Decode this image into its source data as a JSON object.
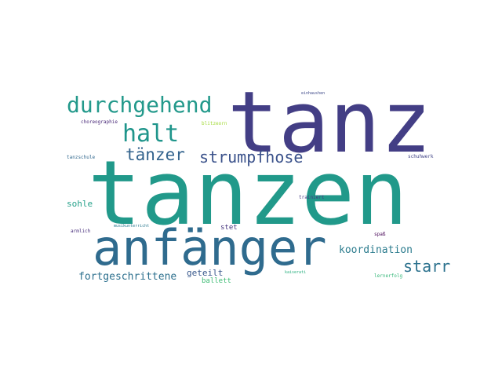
{
  "words": [
    {
      "id": "tanzen",
      "text": "tanzen",
      "color": "#21998a"
    },
    {
      "id": "tanz",
      "text": "tanz",
      "color": "#433e85"
    },
    {
      "id": "anfaenger",
      "text": "anfänger",
      "color": "#2f6b8e"
    },
    {
      "id": "durchgehend",
      "text": "durchgehend",
      "color": "#23998b"
    },
    {
      "id": "halt",
      "text": "halt",
      "color": "#1f958b"
    },
    {
      "id": "taenzer",
      "text": "tänzer",
      "color": "#33638d"
    },
    {
      "id": "strumpfhose",
      "text": "strumpfhose",
      "color": "#3b528b"
    },
    {
      "id": "starr",
      "text": "starr",
      "color": "#2c728e"
    },
    {
      "id": "koordination",
      "text": "koordination",
      "color": "#2c7c8e"
    },
    {
      "id": "fortgeschrittene",
      "text": "fortgeschrittene",
      "color": "#2d708e"
    },
    {
      "id": "sohle",
      "text": "sohle",
      "color": "#25a18a"
    },
    {
      "id": "geteilt",
      "text": "geteilt",
      "color": "#38588c"
    },
    {
      "id": "ballett",
      "text": "ballett",
      "color": "#3dbc74"
    },
    {
      "id": "stet",
      "text": "stet",
      "color": "#46337e"
    },
    {
      "id": "choreographie",
      "text": "choreographie",
      "color": "#482878"
    },
    {
      "id": "blitzeorn",
      "text": "blitzeorn",
      "color": "#a2da37"
    },
    {
      "id": "tanzschule",
      "text": "tanzschule",
      "color": "#31688e"
    },
    {
      "id": "schuhwerk",
      "text": "schuhwerk",
      "color": "#414487"
    },
    {
      "id": "trainiert",
      "text": "trainiert",
      "color": "#443983"
    },
    {
      "id": "armlich",
      "text": "armlich",
      "color": "#472d7b"
    },
    {
      "id": "musikunterricht",
      "text": "musikunterricht",
      "color": "#2a788e"
    },
    {
      "id": "spass",
      "text": "spaß",
      "color": "#440154"
    },
    {
      "id": "lernerfolg",
      "text": "lernerfolg",
      "color": "#35b779"
    },
    {
      "id": "kaiserati",
      "text": "kaiserati",
      "color": "#29af7f"
    },
    {
      "id": "einhaushen",
      "text": "einhaushen",
      "color": "#3e4989"
    }
  ]
}
